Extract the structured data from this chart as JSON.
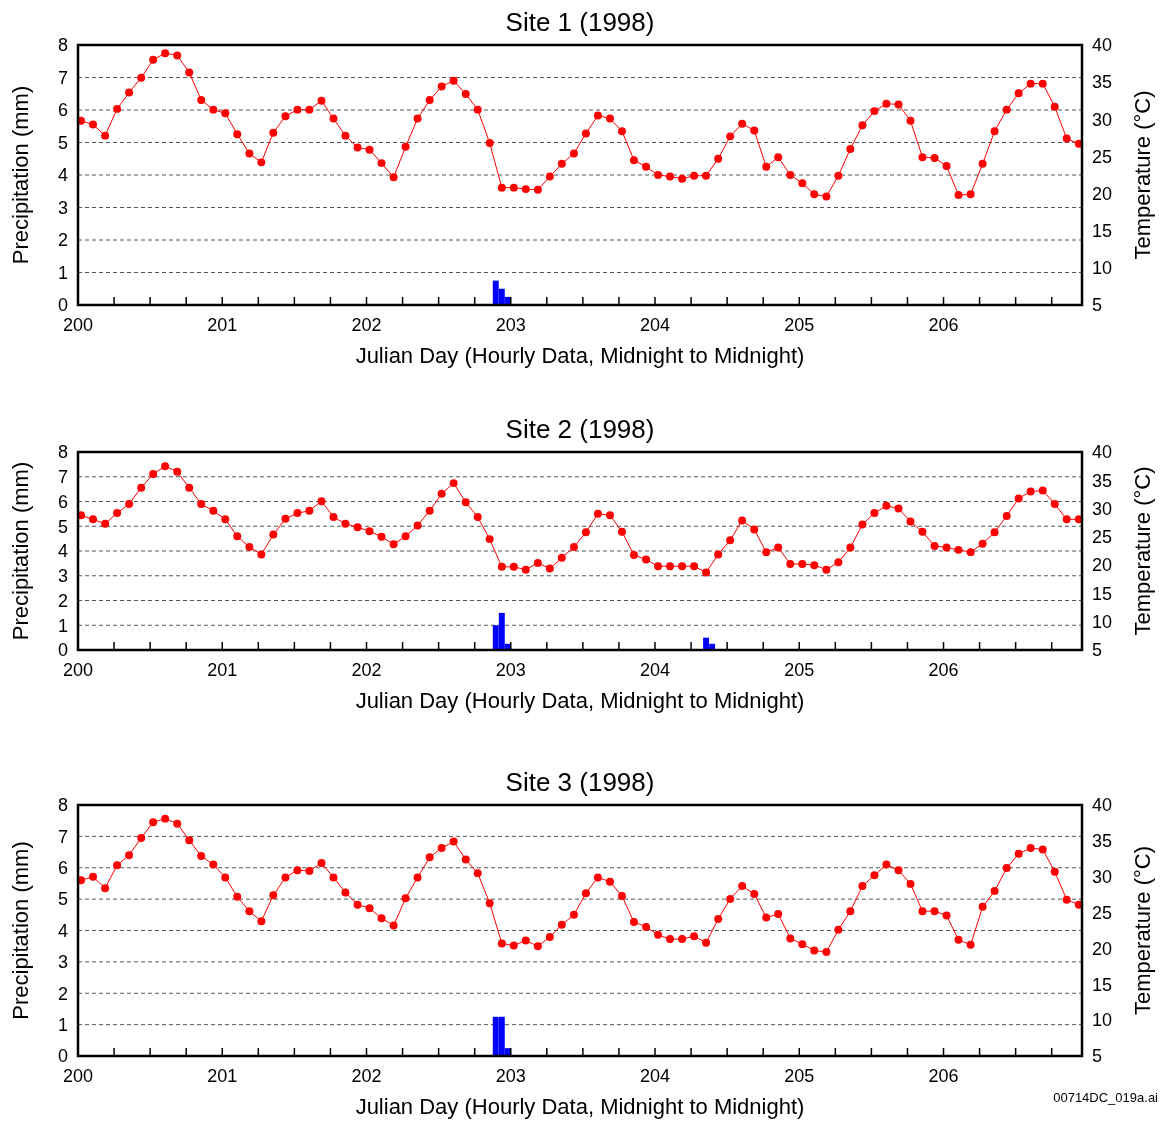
{
  "chart_data": [
    {
      "type": "bar",
      "title": "Site 1 (1998)",
      "xlabel": "Julian Day (Hourly Data, Midnight to Midnight)",
      "ylabel": "Precipitation (mm)",
      "y2label": "Temperature (°C)",
      "xlim": [
        200,
        206.96
      ],
      "xticks": [
        200,
        {
          "value": 200.25,
          "label": null
        },
        {
          "value": 200.5,
          "label": null
        },
        {
          "value": 200.75,
          "label": null
        },
        201,
        {
          "value": 201.25,
          "label": null
        },
        {
          "value": 201.5,
          "label": null
        },
        {
          "value": 201.75,
          "label": null
        },
        202,
        {
          "value": 202.25,
          "label": null
        },
        {
          "value": 202.5,
          "label": null
        },
        {
          "value": 202.75,
          "label": null
        },
        203,
        {
          "value": 203.25,
          "label": null
        },
        {
          "value": 203.5,
          "label": null
        },
        {
          "value": 203.75,
          "label": null
        },
        204,
        {
          "value": 204.25,
          "label": null
        },
        {
          "value": 204.5,
          "label": null
        },
        {
          "value": 204.75,
          "label": null
        },
        205,
        {
          "value": 205.25,
          "label": null
        },
        {
          "value": 205.5,
          "label": null
        },
        {
          "value": 205.75,
          "label": null
        },
        206,
        {
          "value": 206.25,
          "label": null
        },
        {
          "value": 206.5,
          "label": null
        },
        {
          "value": 206.75,
          "label": null
        }
      ],
      "ylim": [
        0,
        8
      ],
      "yticks": [
        0,
        1,
        2,
        3,
        4,
        5,
        6,
        7,
        8
      ],
      "y2lim": [
        5,
        40
      ],
      "y2ticks": [
        5,
        10,
        15,
        20,
        25,
        30,
        35,
        40
      ],
      "grid": "y",
      "marker": "circle",
      "series": [
        {
          "color": "#0000ff",
          "x": [
            202.896,
            202.938,
            202.979
          ],
          "values": [
            0.75,
            0.5,
            0.25
          ]
        },
        {
          "type": "line",
          "axis": "y2",
          "color": "#ff0000",
          "x": [
            200.021,
            200.104,
            200.188,
            200.271,
            200.354,
            200.438,
            200.521,
            200.604,
            200.688,
            200.771,
            200.854,
            200.938,
            201.021,
            201.104,
            201.188,
            201.271,
            201.354,
            201.438,
            201.521,
            201.604,
            201.688,
            201.771,
            201.854,
            201.938,
            202.021,
            202.104,
            202.188,
            202.271,
            202.354,
            202.438,
            202.521,
            202.604,
            202.688,
            202.771,
            202.854,
            202.938,
            203.021,
            203.104,
            203.188,
            203.271,
            203.354,
            203.438,
            203.521,
            203.604,
            203.688,
            203.771,
            203.854,
            203.938,
            204.021,
            204.104,
            204.188,
            204.271,
            204.354,
            204.438,
            204.521,
            204.604,
            204.688,
            204.771,
            204.854,
            204.938,
            205.021,
            205.104,
            205.188,
            205.271,
            205.354,
            205.438,
            205.521,
            205.604,
            205.688,
            205.771,
            205.854,
            205.938,
            206.021,
            206.104,
            206.188,
            206.271,
            206.354,
            206.438,
            206.521,
            206.604,
            206.688,
            206.771,
            206.854,
            206.938
          ],
          "values": [
            29.8,
            29.3,
            27.8,
            31.4,
            33.6,
            35.6,
            38.0,
            38.9,
            38.6,
            36.3,
            32.6,
            31.3,
            30.8,
            28.0,
            25.4,
            24.2,
            28.2,
            30.4,
            31.3,
            31.3,
            32.5,
            30.1,
            27.8,
            26.2,
            25.9,
            24.1,
            22.2,
            26.3,
            30.1,
            32.6,
            34.4,
            35.2,
            33.4,
            31.3,
            26.8,
            20.8,
            20.8,
            20.6,
            20.5,
            22.3,
            24.0,
            25.4,
            28.1,
            30.5,
            30.1,
            28.4,
            24.5,
            23.6,
            22.5,
            22.3,
            22.0,
            22.4,
            22.4,
            24.7,
            27.7,
            29.4,
            28.5,
            23.6,
            24.9,
            22.5,
            21.4,
            19.9,
            19.6,
            22.4,
            26.0,
            29.2,
            31.1,
            32.1,
            32.0,
            29.8,
            24.9,
            24.8,
            23.7,
            19.8,
            19.9,
            24.0,
            28.4,
            31.3,
            33.5,
            34.8,
            34.8,
            31.7,
            27.4,
            26.7
          ]
        }
      ]
    },
    {
      "type": "bar",
      "title": "Site 2 (1998)",
      "xlabel": "Julian Day (Hourly Data, Midnight to Midnight)",
      "ylabel": "Precipitation (mm)",
      "y2label": "Temperature (°C)",
      "xlim": [
        200,
        206.96
      ],
      "xticks": [
        200,
        {
          "value": 200.25,
          "label": null
        },
        {
          "value": 200.5,
          "label": null
        },
        {
          "value": 200.75,
          "label": null
        },
        201,
        {
          "value": 201.25,
          "label": null
        },
        {
          "value": 201.5,
          "label": null
        },
        {
          "value": 201.75,
          "label": null
        },
        202,
        {
          "value": 202.25,
          "label": null
        },
        {
          "value": 202.5,
          "label": null
        },
        {
          "value": 202.75,
          "label": null
        },
        203,
        {
          "value": 203.25,
          "label": null
        },
        {
          "value": 203.5,
          "label": null
        },
        {
          "value": 203.75,
          "label": null
        },
        204,
        {
          "value": 204.25,
          "label": null
        },
        {
          "value": 204.5,
          "label": null
        },
        {
          "value": 204.75,
          "label": null
        },
        205,
        {
          "value": 205.25,
          "label": null
        },
        {
          "value": 205.5,
          "label": null
        },
        {
          "value": 205.75,
          "label": null
        },
        206,
        {
          "value": 206.25,
          "label": null
        },
        {
          "value": 206.5,
          "label": null
        },
        {
          "value": 206.75,
          "label": null
        }
      ],
      "ylim": [
        0,
        8
      ],
      "yticks": [
        0,
        1,
        2,
        3,
        4,
        5,
        6,
        7,
        8
      ],
      "y2lim": [
        5,
        40
      ],
      "y2ticks": [
        5,
        10,
        15,
        20,
        25,
        30,
        35,
        40
      ],
      "grid": "y",
      "marker": "circle",
      "series": [
        {
          "color": "#0000ff",
          "x": [
            202.896,
            202.938,
            202.979,
            204.354,
            204.396
          ],
          "values": [
            1.0,
            1.5,
            0.25,
            0.5,
            0.25
          ]
        },
        {
          "type": "line",
          "axis": "y2",
          "color": "#ff0000",
          "x": [
            200.021,
            200.104,
            200.188,
            200.271,
            200.354,
            200.438,
            200.521,
            200.604,
            200.688,
            200.771,
            200.854,
            200.938,
            201.021,
            201.104,
            201.188,
            201.271,
            201.354,
            201.438,
            201.521,
            201.604,
            201.688,
            201.771,
            201.854,
            201.938,
            202.021,
            202.104,
            202.188,
            202.271,
            202.354,
            202.438,
            202.521,
            202.604,
            202.688,
            202.771,
            202.854,
            202.938,
            203.021,
            203.104,
            203.188,
            203.271,
            203.354,
            203.438,
            203.521,
            203.604,
            203.688,
            203.771,
            203.854,
            203.938,
            204.021,
            204.104,
            204.188,
            204.271,
            204.354,
            204.438,
            204.521,
            204.604,
            204.688,
            204.771,
            204.854,
            204.938,
            205.021,
            205.104,
            205.188,
            205.271,
            205.354,
            205.438,
            205.521,
            205.604,
            205.688,
            205.771,
            205.854,
            205.938,
            206.021,
            206.104,
            206.188,
            206.271,
            206.354,
            206.438,
            206.521,
            206.604,
            206.688,
            206.771,
            206.854,
            206.938
          ],
          "values": [
            28.8,
            28.1,
            27.3,
            29.2,
            30.8,
            33.7,
            36.1,
            37.5,
            36.5,
            33.7,
            30.8,
            29.6,
            28.1,
            25.1,
            23.2,
            21.9,
            25.4,
            28.2,
            29.2,
            29.6,
            31.3,
            28.5,
            27.3,
            26.7,
            26.0,
            25.0,
            23.7,
            25.1,
            27.0,
            29.6,
            32.6,
            34.5,
            31.1,
            28.5,
            24.6,
            19.7,
            19.7,
            19.2,
            20.4,
            19.4,
            21.3,
            23.2,
            25.8,
            29.1,
            28.8,
            25.9,
            21.8,
            21.0,
            19.8,
            19.8,
            19.8,
            19.8,
            18.7,
            21.9,
            24.4,
            27.9,
            26.3,
            22.3,
            23.1,
            20.2,
            20.2,
            20.0,
            19.2,
            20.5,
            23.1,
            27.2,
            29.2,
            30.5,
            30.0,
            27.7,
            25.9,
            23.4,
            23.1,
            22.7,
            22.3,
            23.8,
            25.8,
            28.7,
            31.8,
            33.0,
            33.2,
            30.8,
            28.1,
            28.1
          ]
        }
      ]
    },
    {
      "type": "bar",
      "title": "Site 3 (1998)",
      "xlabel": "Julian Day (Hourly Data, Midnight to Midnight)",
      "ylabel": "Precipitation (mm)",
      "y2label": "Temperature (°C)",
      "annotations": [
        "00714DC_019a.ai"
      ],
      "xlim": [
        200,
        206.96
      ],
      "xticks": [
        200,
        {
          "value": 200.25,
          "label": null
        },
        {
          "value": 200.5,
          "label": null
        },
        {
          "value": 200.75,
          "label": null
        },
        201,
        {
          "value": 201.25,
          "label": null
        },
        {
          "value": 201.5,
          "label": null
        },
        {
          "value": 201.75,
          "label": null
        },
        202,
        {
          "value": 202.25,
          "label": null
        },
        {
          "value": 202.5,
          "label": null
        },
        {
          "value": 202.75,
          "label": null
        },
        203,
        {
          "value": 203.25,
          "label": null
        },
        {
          "value": 203.5,
          "label": null
        },
        {
          "value": 203.75,
          "label": null
        },
        204,
        {
          "value": 204.25,
          "label": null
        },
        {
          "value": 204.5,
          "label": null
        },
        {
          "value": 204.75,
          "label": null
        },
        205,
        {
          "value": 205.25,
          "label": null
        },
        {
          "value": 205.5,
          "label": null
        },
        {
          "value": 205.75,
          "label": null
        },
        206,
        {
          "value": 206.25,
          "label": null
        },
        {
          "value": 206.5,
          "label": null
        },
        {
          "value": 206.75,
          "label": null
        }
      ],
      "ylim": [
        0,
        8
      ],
      "yticks": [
        0,
        1,
        2,
        3,
        4,
        5,
        6,
        7,
        8
      ],
      "y2lim": [
        5,
        40
      ],
      "y2ticks": [
        5,
        10,
        15,
        20,
        25,
        30,
        35,
        40
      ],
      "grid": "y",
      "marker": "circle",
      "series": [
        {
          "color": "#0000ff",
          "x": [
            202.896,
            202.938,
            202.979
          ],
          "values": [
            1.25,
            1.25,
            0.25
          ]
        },
        {
          "type": "line",
          "axis": "y2",
          "color": "#ff0000",
          "x": [
            200.021,
            200.104,
            200.188,
            200.271,
            200.354,
            200.438,
            200.521,
            200.604,
            200.688,
            200.771,
            200.854,
            200.938,
            201.021,
            201.104,
            201.188,
            201.271,
            201.354,
            201.438,
            201.521,
            201.604,
            201.688,
            201.771,
            201.854,
            201.938,
            202.021,
            202.104,
            202.188,
            202.271,
            202.354,
            202.438,
            202.521,
            202.604,
            202.688,
            202.771,
            202.854,
            202.938,
            203.021,
            203.104,
            203.188,
            203.271,
            203.354,
            203.438,
            203.521,
            203.604,
            203.688,
            203.771,
            203.854,
            203.938,
            204.021,
            204.104,
            204.188,
            204.271,
            204.354,
            204.438,
            204.521,
            204.604,
            204.688,
            204.771,
            204.854,
            204.938,
            205.021,
            205.104,
            205.188,
            205.271,
            205.354,
            205.438,
            205.521,
            205.604,
            205.688,
            205.771,
            205.854,
            205.938,
            206.021,
            206.104,
            206.188,
            206.271,
            206.354,
            206.438,
            206.521,
            206.604,
            206.688,
            206.771,
            206.854,
            206.938
          ],
          "values": [
            29.5,
            30.0,
            28.4,
            31.6,
            33.0,
            35.4,
            37.6,
            38.1,
            37.4,
            35.1,
            32.9,
            31.7,
            29.9,
            27.2,
            25.2,
            23.8,
            27.4,
            29.9,
            30.9,
            30.8,
            31.9,
            29.9,
            27.8,
            26.1,
            25.6,
            24.2,
            23.2,
            27.0,
            29.9,
            32.7,
            34.0,
            34.9,
            32.4,
            30.5,
            26.3,
            20.7,
            20.4,
            21.1,
            20.3,
            21.6,
            23.3,
            24.7,
            27.7,
            29.9,
            29.3,
            27.3,
            23.7,
            23.0,
            21.9,
            21.3,
            21.3,
            21.7,
            20.8,
            24.1,
            26.9,
            28.7,
            27.6,
            24.3,
            24.8,
            21.4,
            20.6,
            19.7,
            19.5,
            22.6,
            25.2,
            28.7,
            30.2,
            31.7,
            30.9,
            29.0,
            25.2,
            25.2,
            24.6,
            21.2,
            20.5,
            25.8,
            28.0,
            31.2,
            33.2,
            34.0,
            33.8,
            30.7,
            26.8,
            26.1
          ]
        }
      ]
    }
  ]
}
